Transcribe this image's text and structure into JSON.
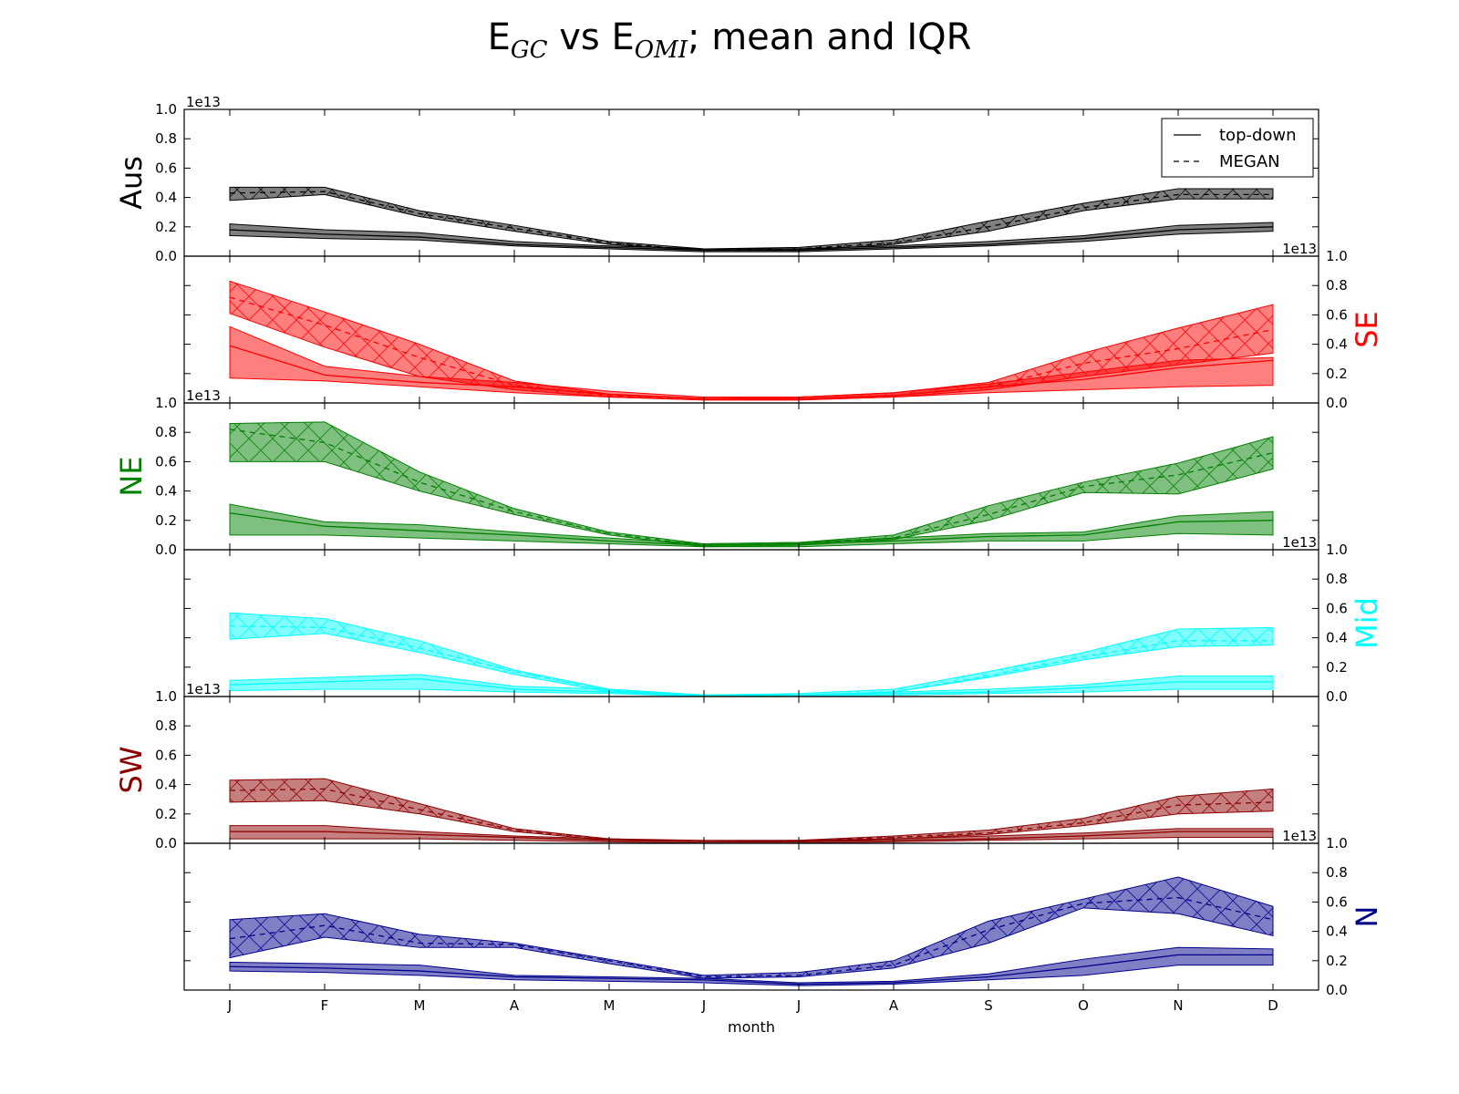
{
  "title": {
    "e1": "E",
    "sub1": "GC",
    "vs": " vs ",
    "e2": "E",
    "sub2": "OMI",
    "rest": "; mean and IQR"
  },
  "colors": {
    "Aus": "#000000",
    "SE": "#ff0000",
    "NE": "#008000",
    "Mid": "#00ffff",
    "SW": "#8b0000",
    "N": "#00008b"
  },
  "chart_data": {
    "type": "line",
    "xlabel": "month",
    "categories": [
      "J",
      "F",
      "M",
      "A",
      "M",
      "J",
      "J",
      "A",
      "S",
      "O",
      "N",
      "D"
    ],
    "ylim": [
      0.0,
      1.0
    ],
    "yticks": [
      "0.0",
      "0.2",
      "0.4",
      "0.6",
      "0.8",
      "1.0"
    ],
    "offset_label": "1e13",
    "legend": {
      "placement": "top-right",
      "entries": [
        "top-down",
        "MEGAN"
      ]
    },
    "panels": [
      {
        "region": "Aus",
        "color": "#000000",
        "axis_side": "left",
        "series": [
          {
            "name": "top-down",
            "mean": [
              0.18,
              0.15,
              0.13,
              0.08,
              0.06,
              0.04,
              0.04,
              0.06,
              0.08,
              0.12,
              0.18,
              0.2
            ],
            "q1": [
              0.14,
              0.12,
              0.11,
              0.07,
              0.05,
              0.03,
              0.03,
              0.05,
              0.07,
              0.1,
              0.15,
              0.17
            ],
            "q3": [
              0.22,
              0.18,
              0.16,
              0.1,
              0.07,
              0.05,
              0.05,
              0.07,
              0.1,
              0.14,
              0.21,
              0.23
            ]
          },
          {
            "name": "MEGAN",
            "mean": [
              0.43,
              0.44,
              0.29,
              0.19,
              0.09,
              0.04,
              0.05,
              0.09,
              0.2,
              0.33,
              0.42,
              0.42
            ],
            "q1": [
              0.38,
              0.42,
              0.27,
              0.17,
              0.08,
              0.04,
              0.04,
              0.08,
              0.17,
              0.31,
              0.39,
              0.39
            ],
            "q3": [
              0.47,
              0.47,
              0.31,
              0.21,
              0.1,
              0.05,
              0.06,
              0.11,
              0.24,
              0.36,
              0.46,
              0.46
            ]
          }
        ]
      },
      {
        "region": "SE",
        "color": "#ff0000",
        "axis_side": "right",
        "series": [
          {
            "name": "top-down",
            "mean": [
              0.39,
              0.19,
              0.14,
              0.11,
              0.06,
              0.03,
              0.03,
              0.05,
              0.11,
              0.16,
              0.24,
              0.29
            ],
            "q1": [
              0.17,
              0.15,
              0.11,
              0.07,
              0.04,
              0.02,
              0.02,
              0.04,
              0.07,
              0.09,
              0.11,
              0.12
            ],
            "q3": [
              0.52,
              0.25,
              0.18,
              0.14,
              0.08,
              0.04,
              0.04,
              0.07,
              0.13,
              0.21,
              0.29,
              0.31
            ]
          },
          {
            "name": "MEGAN",
            "mean": [
              0.72,
              0.53,
              0.31,
              0.12,
              0.05,
              0.03,
              0.03,
              0.05,
              0.11,
              0.27,
              0.37,
              0.5
            ],
            "q1": [
              0.61,
              0.38,
              0.18,
              0.09,
              0.04,
              0.02,
              0.02,
              0.04,
              0.09,
              0.18,
              0.26,
              0.34
            ],
            "q3": [
              0.83,
              0.62,
              0.4,
              0.15,
              0.06,
              0.03,
              0.04,
              0.07,
              0.14,
              0.34,
              0.51,
              0.67
            ]
          }
        ]
      },
      {
        "region": "NE",
        "color": "#008000",
        "axis_side": "left",
        "series": [
          {
            "name": "top-down",
            "mean": [
              0.25,
              0.16,
              0.13,
              0.1,
              0.06,
              0.03,
              0.04,
              0.06,
              0.09,
              0.1,
              0.19,
              0.2
            ],
            "q1": [
              0.1,
              0.1,
              0.08,
              0.06,
              0.04,
              0.02,
              0.02,
              0.04,
              0.06,
              0.06,
              0.11,
              0.1
            ],
            "q3": [
              0.31,
              0.19,
              0.17,
              0.12,
              0.08,
              0.04,
              0.05,
              0.08,
              0.11,
              0.12,
              0.23,
              0.26
            ]
          },
          {
            "name": "MEGAN",
            "mean": [
              0.82,
              0.73,
              0.46,
              0.26,
              0.11,
              0.03,
              0.04,
              0.08,
              0.24,
              0.43,
              0.51,
              0.66
            ],
            "q1": [
              0.6,
              0.6,
              0.4,
              0.24,
              0.1,
              0.02,
              0.03,
              0.07,
              0.2,
              0.39,
              0.38,
              0.55
            ],
            "q3": [
              0.86,
              0.87,
              0.53,
              0.28,
              0.12,
              0.04,
              0.05,
              0.1,
              0.3,
              0.46,
              0.59,
              0.77
            ]
          }
        ]
      },
      {
        "region": "Mid",
        "color": "#00ffff",
        "axis_side": "right",
        "series": [
          {
            "name": "top-down",
            "mean": [
              0.08,
              0.1,
              0.12,
              0.05,
              0.03,
              0.01,
              0.01,
              0.02,
              0.03,
              0.06,
              0.1,
              0.1
            ],
            "q1": [
              0.04,
              0.05,
              0.05,
              0.03,
              0.02,
              0.0,
              0.0,
              0.01,
              0.02,
              0.03,
              0.05,
              0.05
            ],
            "q3": [
              0.11,
              0.13,
              0.15,
              0.07,
              0.05,
              0.01,
              0.01,
              0.03,
              0.05,
              0.08,
              0.14,
              0.14
            ]
          },
          {
            "name": "MEGAN",
            "mean": [
              0.48,
              0.47,
              0.33,
              0.17,
              0.04,
              0.01,
              0.01,
              0.03,
              0.14,
              0.27,
              0.38,
              0.38
            ],
            "q1": [
              0.39,
              0.43,
              0.3,
              0.15,
              0.03,
              0.0,
              0.01,
              0.03,
              0.13,
              0.25,
              0.34,
              0.35
            ],
            "q3": [
              0.57,
              0.53,
              0.38,
              0.18,
              0.05,
              0.01,
              0.02,
              0.05,
              0.17,
              0.3,
              0.46,
              0.47
            ]
          }
        ]
      },
      {
        "region": "SW",
        "color": "#8b0000",
        "axis_side": "left",
        "series": [
          {
            "name": "top-down",
            "mean": [
              0.08,
              0.08,
              0.06,
              0.04,
              0.02,
              0.01,
              0.01,
              0.02,
              0.03,
              0.05,
              0.08,
              0.08
            ],
            "q1": [
              0.03,
              0.03,
              0.03,
              0.02,
              0.01,
              0.0,
              0.0,
              0.01,
              0.02,
              0.03,
              0.04,
              0.04
            ],
            "q3": [
              0.12,
              0.12,
              0.08,
              0.05,
              0.03,
              0.01,
              0.02,
              0.03,
              0.05,
              0.07,
              0.1,
              0.1
            ]
          },
          {
            "name": "MEGAN",
            "mean": [
              0.36,
              0.37,
              0.23,
              0.09,
              0.03,
              0.01,
              0.02,
              0.04,
              0.07,
              0.14,
              0.26,
              0.28
            ],
            "q1": [
              0.28,
              0.29,
              0.2,
              0.08,
              0.02,
              0.01,
              0.01,
              0.03,
              0.06,
              0.12,
              0.2,
              0.22
            ],
            "q3": [
              0.43,
              0.44,
              0.27,
              0.1,
              0.03,
              0.02,
              0.02,
              0.05,
              0.09,
              0.17,
              0.32,
              0.37
            ]
          }
        ]
      },
      {
        "region": "N",
        "color": "#00008b",
        "axis_side": "right",
        "series": [
          {
            "name": "top-down",
            "mean": [
              0.16,
              0.15,
              0.13,
              0.09,
              0.08,
              0.07,
              0.04,
              0.05,
              0.09,
              0.16,
              0.24,
              0.24
            ],
            "q1": [
              0.13,
              0.12,
              0.1,
              0.07,
              0.06,
              0.05,
              0.03,
              0.04,
              0.07,
              0.1,
              0.17,
              0.17
            ],
            "q3": [
              0.19,
              0.18,
              0.17,
              0.1,
              0.09,
              0.08,
              0.05,
              0.06,
              0.11,
              0.21,
              0.29,
              0.28
            ]
          },
          {
            "name": "MEGAN",
            "mean": [
              0.35,
              0.44,
              0.32,
              0.31,
              0.2,
              0.09,
              0.1,
              0.17,
              0.41,
              0.59,
              0.63,
              0.48
            ],
            "q1": [
              0.22,
              0.36,
              0.29,
              0.29,
              0.18,
              0.08,
              0.09,
              0.15,
              0.32,
              0.56,
              0.52,
              0.37
            ],
            "q3": [
              0.48,
              0.52,
              0.38,
              0.32,
              0.21,
              0.1,
              0.12,
              0.2,
              0.47,
              0.62,
              0.77,
              0.57
            ]
          }
        ]
      }
    ]
  }
}
